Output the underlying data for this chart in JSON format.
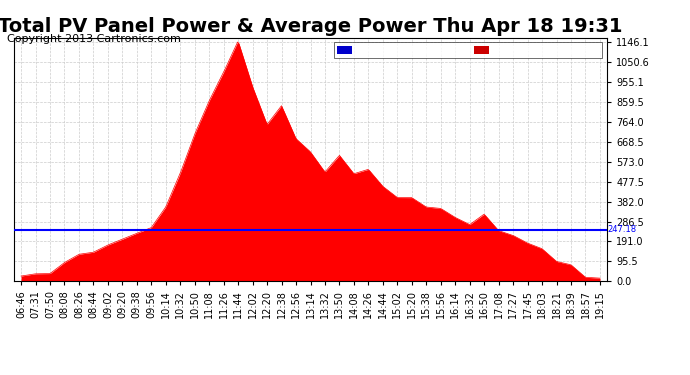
{
  "title": "Total PV Panel Power & Average Power Thu Apr 18 19:31",
  "copyright": "Copyright 2013 Cartronics.com",
  "average_value": 247.18,
  "ymax": 1146.1,
  "ymin": 0.0,
  "yticks": [
    0.0,
    95.5,
    191.0,
    286.5,
    382.0,
    477.5,
    573.0,
    668.5,
    764.0,
    859.5,
    955.1,
    1050.6,
    1146.1
  ],
  "bg_color": "#ffffff",
  "plot_bg_color": "#ffffff",
  "grid_color": "#cccccc",
  "fill_color": "#ff0000",
  "line_color": "#ff0000",
  "avg_line_color": "#0000ff",
  "legend_avg_bg": "#0000cc",
  "legend_pv_bg": "#cc0000",
  "title_fontsize": 14,
  "copyright_fontsize": 8,
  "tick_fontsize": 7,
  "xtick_labels": [
    "06:46",
    "07:31",
    "07:50",
    "08:08",
    "08:26",
    "08:44",
    "09:02",
    "09:20",
    "09:38",
    "09:56",
    "10:14",
    "10:32",
    "10:50",
    "11:08",
    "11:26",
    "11:44",
    "12:02",
    "12:20",
    "12:38",
    "12:56",
    "13:14",
    "13:32",
    "13:50",
    "14:08",
    "14:26",
    "14:44",
    "15:02",
    "15:20",
    "15:38",
    "15:56",
    "16:14",
    "16:32",
    "16:50",
    "17:08",
    "17:27",
    "17:45",
    "18:03",
    "18:21",
    "18:39",
    "18:57",
    "19:15"
  ]
}
